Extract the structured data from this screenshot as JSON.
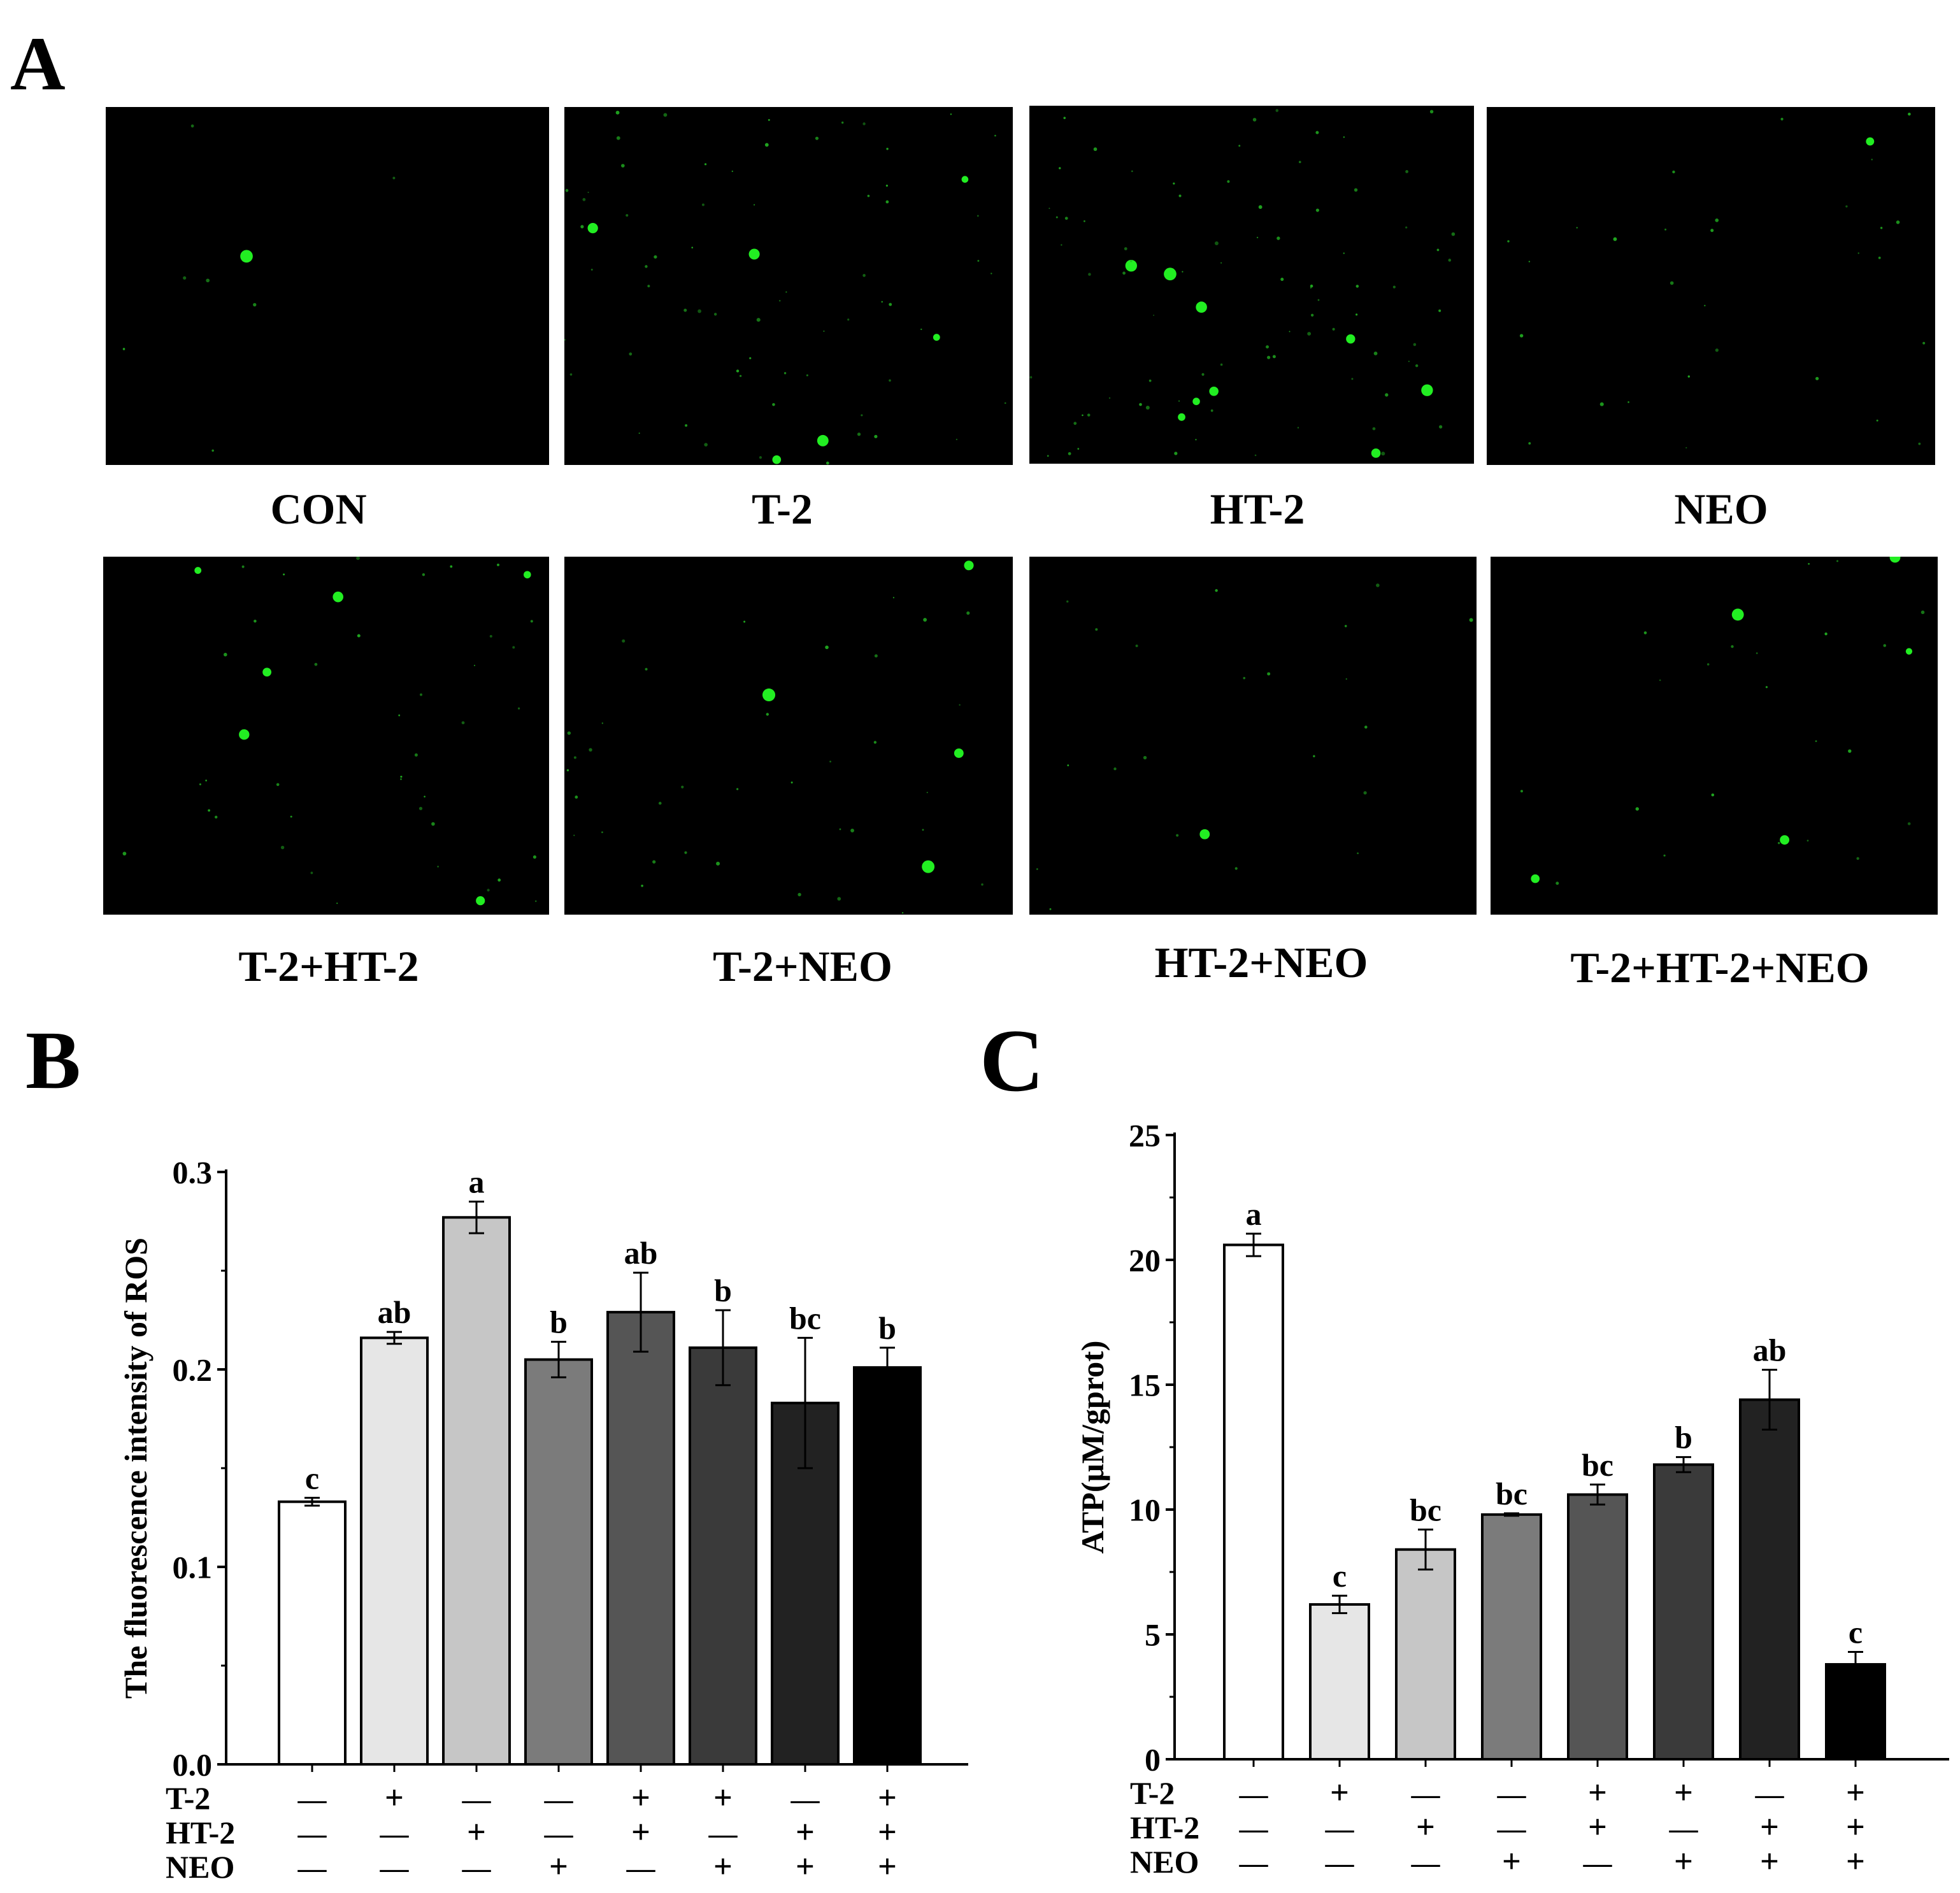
{
  "figure": {
    "panel_a_label": "A",
    "panel_b_label": "B",
    "panel_c_label": "C",
    "micrograph_labels": [
      "CON",
      "T-2",
      "HT-2",
      "NEO",
      "T-2+HT-2",
      "T-2+NEO",
      "HT-2+NEO",
      "T-2+HT-2+NEO"
    ]
  },
  "chart_data": [
    {
      "type": "bar",
      "panel": "B",
      "ylabel": "The fluorescence intensity of ROS",
      "xlabel": "",
      "ylim": [
        0,
        0.3
      ],
      "yticks": [
        "0.0",
        "0.1",
        "0.2",
        "0.3"
      ],
      "values": [
        0.133,
        0.216,
        0.277,
        0.205,
        0.229,
        0.211,
        0.183,
        0.201
      ],
      "errors": [
        0.002,
        0.003,
        0.008,
        0.009,
        0.02,
        0.019,
        0.033,
        0.01
      ],
      "significance": [
        "c",
        "ab",
        "a",
        "b",
        "ab",
        "b",
        "bc",
        "b"
      ],
      "bar_colors": [
        "#ffffff",
        "#e6e6e6",
        "#c6c6c6",
        "#7b7b7b",
        "#555555",
        "#3a3a3a",
        "#222222",
        "#000000"
      ],
      "treatment_rows": [
        {
          "name": "T-2",
          "signs": [
            "—",
            "+",
            "—",
            "—",
            "+",
            "+",
            "—",
            "+"
          ]
        },
        {
          "name": "HT-2",
          "signs": [
            "—",
            "—",
            "+",
            "—",
            "+",
            "—",
            "+",
            "+"
          ]
        },
        {
          "name": "NEO",
          "signs": [
            "—",
            "—",
            "—",
            "+",
            "—",
            "+",
            "+",
            "+"
          ]
        }
      ]
    },
    {
      "type": "bar",
      "panel": "C",
      "ylabel": "ATP(μM/gprot)",
      "xlabel": "",
      "ylim": [
        0,
        25
      ],
      "yticks": [
        "0",
        "5",
        "10",
        "15",
        "20",
        "25"
      ],
      "values": [
        20.6,
        6.2,
        8.4,
        9.8,
        10.6,
        11.8,
        14.4,
        3.8
      ],
      "errors": [
        0.45,
        0.35,
        0.8,
        0.05,
        0.4,
        0.3,
        1.2,
        0.5
      ],
      "significance": [
        "a",
        "c",
        "bc",
        "bc",
        "bc",
        "b",
        "ab",
        "c"
      ],
      "bar_colors": [
        "#ffffff",
        "#e6e6e6",
        "#c6c6c6",
        "#7b7b7b",
        "#555555",
        "#3a3a3a",
        "#222222",
        "#000000"
      ],
      "treatment_rows": [
        {
          "name": "T-2",
          "signs": [
            "—",
            "+",
            "—",
            "—",
            "+",
            "+",
            "—",
            "+"
          ]
        },
        {
          "name": "HT-2",
          "signs": [
            "—",
            "—",
            "+",
            "—",
            "+",
            "—",
            "+",
            "+"
          ]
        },
        {
          "name": "NEO",
          "signs": [
            "—",
            "—",
            "—",
            "+",
            "—",
            "+",
            "+",
            "+"
          ]
        }
      ]
    }
  ]
}
